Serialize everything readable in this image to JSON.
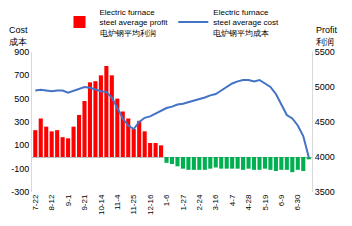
{
  "chart_data": {
    "type": "bar",
    "categories": [
      "7-22",
      null,
      null,
      "8-12",
      null,
      null,
      "9-1",
      null,
      null,
      "9-21",
      null,
      null,
      "10-14",
      null,
      null,
      "11-4",
      null,
      null,
      "11-25",
      null,
      null,
      "12-16",
      null,
      null,
      "1-6",
      null,
      null,
      "1-27",
      null,
      null,
      "2-24",
      null,
      null,
      "3-16",
      null,
      null,
      "4-7",
      null,
      null,
      "4-28",
      null,
      null,
      "5-19",
      null,
      null,
      "6-9",
      null,
      null,
      "6-30",
      null,
      null
    ],
    "y_label": "Cost 成本",
    "y2_label": "Profit 利润",
    "ylim": [
      -300,
      900
    ],
    "yticks": [
      -300,
      -100,
      100,
      300,
      500,
      700,
      900
    ],
    "y2lim": [
      3500,
      5500
    ],
    "y2ticks": [
      3500,
      4000,
      4500,
      5000,
      5500
    ],
    "grid": false,
    "legend": "top",
    "series": [
      {
        "name": "Electric furnace steel average profit 电炉钢平均利润",
        "type": "bar",
        "color": "#ff0000",
        "colors": [
          "#ff0000",
          "#ff0000",
          "#ff0000",
          "#ff0000",
          "#ff0000",
          "#ff0000",
          "#ff0000",
          "#ff0000",
          "#ff0000",
          "#ff0000",
          "#ff0000",
          "#ff0000",
          "#ff0000",
          "#ff0000",
          "#ff0000",
          "#ff0000",
          "#ff0000",
          "#ff0000",
          "#ff0000",
          "#ff0000",
          "#ff0000",
          "#ff0000",
          "#ff0000",
          "#ff0000",
          "#00b050",
          "#00b050",
          "#00b050",
          "#00b050",
          "#00b050",
          "#00b050",
          "#00b050",
          "#00b050",
          "#00b050",
          "#00b050",
          "#00b050",
          "#00b050",
          "#00b050",
          "#00b050",
          "#00b050",
          "#00b050",
          "#00b050",
          "#00b050",
          "#00b050",
          "#00b050",
          "#00b050",
          "#00b050",
          "#00b050",
          "#00b050",
          "#00b050",
          "#00b050",
          "#00b050"
        ],
        "values": [
          230,
          330,
          260,
          220,
          230,
          170,
          160,
          260,
          360,
          480,
          640,
          650,
          700,
          780,
          700,
          500,
          390,
          330,
          240,
          310,
          220,
          120,
          120,
          100,
          -50,
          -60,
          -80,
          -100,
          -110,
          -110,
          -110,
          -110,
          -100,
          -90,
          -100,
          -100,
          -100,
          -100,
          -110,
          -100,
          -110,
          -110,
          -100,
          -110,
          -120,
          -110,
          -110,
          -130,
          -110,
          -120,
          -20
        ]
      },
      {
        "name": "Electric furnace steel average cost 电炉钢平均成本",
        "type": "line",
        "axis": "y2",
        "color": "#4472c4",
        "values": [
          4950,
          4960,
          4950,
          4940,
          4950,
          4950,
          4920,
          4950,
          4970,
          5000,
          4990,
          4960,
          4940,
          4930,
          4850,
          4700,
          4550,
          4450,
          4400,
          4500,
          4560,
          4580,
          4620,
          4650,
          4700,
          4720,
          4750,
          4760,
          4780,
          4800,
          4820,
          4850,
          4880,
          4900,
          4950,
          5000,
          5050,
          5080,
          5100,
          5100,
          5080,
          5100,
          5050,
          5000,
          4900,
          4750,
          4600,
          4550,
          4450,
          4300,
          4000
        ]
      }
    ]
  }
}
